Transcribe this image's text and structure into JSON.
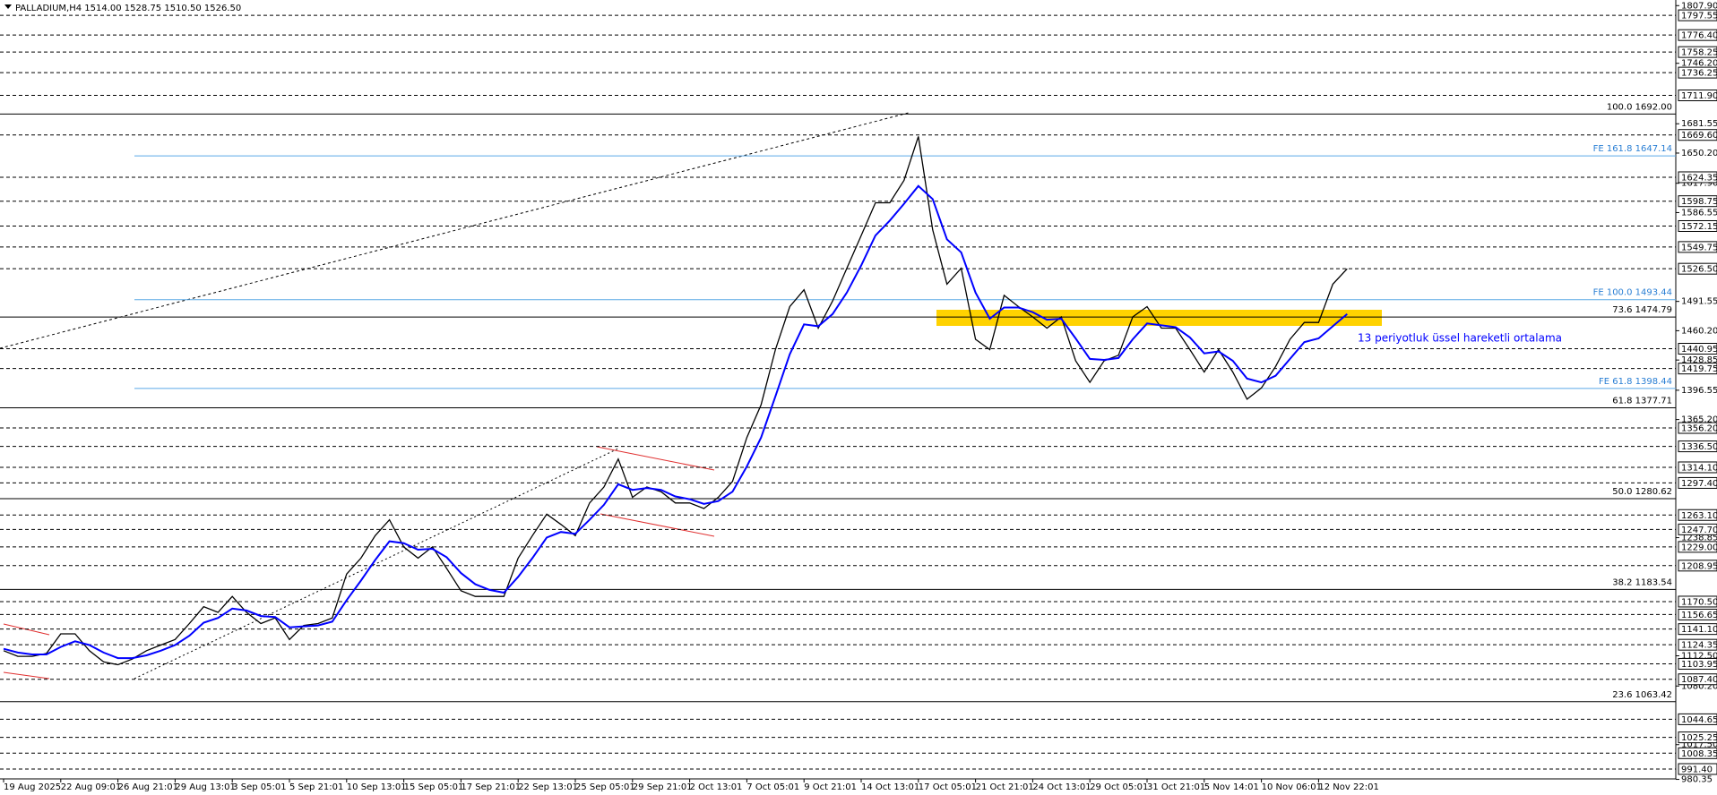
{
  "chart_data": {
    "type": "line",
    "title": "PALLADIUM,H4  1514.00 1528.75 1510.50 1526.50",
    "categories": [
      "19 Aug 2025",
      null,
      null,
      null,
      "22 Aug 09:01",
      null,
      null,
      null,
      "26 Aug 21:01",
      null,
      null,
      null,
      "29 Aug 13:01",
      null,
      null,
      null,
      "3 Sep 05:01",
      null,
      null,
      null,
      "5 Sep 21:01",
      null,
      null,
      null,
      "10 Sep 13:01",
      null,
      null,
      null,
      "15 Sep 05:01",
      null,
      null,
      null,
      "17 Sep 21:01",
      null,
      null,
      null,
      "22 Sep 13:01",
      null,
      null,
      null,
      "25 Sep 05:01",
      null,
      null,
      null,
      "29 Sep 21:01",
      null,
      null,
      null,
      "2 Oct 13:01",
      null,
      null,
      null,
      "7 Oct 05:01",
      null,
      null,
      null,
      "9 Oct 21:01",
      null,
      null,
      null,
      "14 Oct 13:01",
      null,
      null,
      null,
      "17 Oct 05:01",
      null,
      null,
      null,
      "21 Oct 21:01",
      null,
      null,
      null,
      "24 Oct 13:01",
      null,
      null,
      null,
      "29 Oct 05:01",
      null,
      null,
      null,
      "31 Oct 21:01",
      null,
      null,
      null,
      "5 Nov 14:01",
      null,
      null,
      null,
      "10 Nov 06:01",
      null,
      null,
      null,
      "12 Nov 22:01",
      null,
      null
    ],
    "series": [
      {
        "color": "#000000",
        "values": [
          1118,
          1112,
          1112,
          1115,
          1136,
          1136,
          1118,
          1106,
          1103,
          1109,
          1118,
          1124,
          1130,
          1147,
          1165,
          1159,
          1176,
          1159,
          1147,
          1153,
          1130,
          1145,
          1147,
          1153,
          1200,
          1217,
          1241,
          1258,
          1229,
          1217,
          1229,
          1206,
          1182,
          1176,
          1176,
          1176,
          1217,
          1241,
          1264,
          1253,
          1241,
          1276,
          1293,
          1323,
          1282,
          1293,
          1288,
          1276,
          1276,
          1270,
          1282,
          1299,
          1346,
          1381,
          1440,
          1486,
          1504,
          1463,
          1492,
          1527,
          1562,
          1597,
          1597,
          1621,
          1668,
          1568,
          1510,
          1527,
          1451,
          1440,
          1498,
          1486,
          1475,
          1463,
          1475,
          1428,
          1405,
          1428,
          1434,
          1475,
          1486,
          1463,
          1463,
          1440,
          1416,
          1440,
          1416,
          1387,
          1399,
          1422,
          1451,
          1469,
          1469,
          1510,
          1526.5
        ]
      },
      {
        "name": "13 periyotluk üssel hareketli ortalama",
        "color": "#0000ff",
        "values": [
          1120,
          1116,
          1114,
          1114,
          1122,
          1128,
          1124,
          1116,
          1110,
          1110,
          1113,
          1118,
          1124,
          1134,
          1148,
          1153,
          1163,
          1161,
          1155,
          1154,
          1143,
          1144,
          1145,
          1149,
          1172,
          1193,
          1215,
          1235,
          1233,
          1226,
          1227,
          1218,
          1201,
          1189,
          1183,
          1180,
          1197,
          1217,
          1239,
          1245,
          1243,
          1258,
          1274,
          1296,
          1290,
          1292,
          1290,
          1283,
          1280,
          1275,
          1278,
          1288,
          1315,
          1346,
          1390,
          1435,
          1467,
          1465,
          1478,
          1501,
          1530,
          1562,
          1578,
          1596,
          1615,
          1601,
          1558,
          1544,
          1501,
          1473,
          1485,
          1485,
          1480,
          1472,
          1473,
          1452,
          1430,
          1429,
          1431,
          1451,
          1468,
          1466,
          1464,
          1453,
          1436,
          1438,
          1428,
          1409,
          1405,
          1412,
          1430,
          1448,
          1452,
          1465,
          1478
        ]
      }
    ],
    "ylim": [
      978,
      1812
    ],
    "yticks": [
      {
        "value": 1807.9,
        "label": "1807.90"
      },
      {
        "value": 1746.2,
        "label": "1746.20"
      },
      {
        "value": 1681.55,
        "label": "1681.55"
      },
      {
        "value": 1650.2,
        "label": "1650.20"
      },
      {
        "value": 1617.9,
        "label": "1617.90"
      },
      {
        "value": 1586.55,
        "label": "1586.55"
      },
      {
        "value": 1491.55,
        "label": "1491.55"
      },
      {
        "value": 1460.2,
        "label": "1460.20"
      },
      {
        "value": 1428.85,
        "label": "1428.85"
      },
      {
        "value": 1396.55,
        "label": "1396.55"
      },
      {
        "value": 1365.2,
        "label": "1365.20"
      },
      {
        "value": 1238.85,
        "label": "1238.85"
      },
      {
        "value": 1112.5,
        "label": "1112.50"
      },
      {
        "value": 1080.2,
        "label": "1080.20"
      },
      {
        "value": 1017.5,
        "label": "1017.50"
      },
      {
        "value": 980.35,
        "label": "980.35"
      }
    ],
    "levels": [
      {
        "value": 1797.55,
        "label": "1797.55"
      },
      {
        "value": 1776.4,
        "label": "1776.40"
      },
      {
        "value": 1758.25,
        "label": "1758.25"
      },
      {
        "value": 1736.25,
        "label": "1736.25"
      },
      {
        "value": 1711.9,
        "label": "1711.90"
      },
      {
        "value": 1669.6,
        "label": "1669.60"
      },
      {
        "value": 1624.35,
        "label": "1624.35"
      },
      {
        "value": 1598.75,
        "label": "1598.75"
      },
      {
        "value": 1572.15,
        "label": "1572.15"
      },
      {
        "value": 1549.75,
        "label": "1549.75"
      },
      {
        "value": 1526.5,
        "label": "1526.50"
      },
      {
        "value": 1440.95,
        "label": "1440.95"
      },
      {
        "value": 1419.75,
        "label": "1419.75"
      },
      {
        "value": 1356.2,
        "label": "1356.20"
      },
      {
        "value": 1336.5,
        "label": "1336.50"
      },
      {
        "value": 1314.1,
        "label": "1314.10"
      },
      {
        "value": 1297.4,
        "label": "1297.40"
      },
      {
        "value": 1263.1,
        "label": "1263.10"
      },
      {
        "value": 1247.7,
        "label": "1247.70"
      },
      {
        "value": 1229,
        "label": "1229.00"
      },
      {
        "value": 1208.95,
        "label": "1208.95"
      },
      {
        "value": 1170.5,
        "label": "1170.50"
      },
      {
        "value": 1156.65,
        "label": "1156.65"
      },
      {
        "value": 1141.1,
        "label": "1141.10"
      },
      {
        "value": 1124.35,
        "label": "1124.35"
      },
      {
        "value": 1103.95,
        "label": "1103.95"
      },
      {
        "value": 1087.4,
        "label": "1087.40"
      },
      {
        "value": 1044.65,
        "label": "1044.65"
      },
      {
        "value": 1025.25,
        "label": "1025.25"
      },
      {
        "value": 1008.35,
        "label": "1008.35"
      },
      {
        "value": 991.4,
        "label": "991.40"
      }
    ],
    "fibonacci": [
      {
        "value": 1692,
        "label": "100.0 1692.00"
      },
      {
        "value": 1474.79,
        "label": "73.6 1474.79"
      },
      {
        "value": 1377.71,
        "label": "61.8 1377.71"
      },
      {
        "value": 1280.62,
        "label": "50.0 1280.62"
      },
      {
        "value": 1183.54,
        "label": "38.2 1183.54"
      },
      {
        "value": 1063.42,
        "label": "23.6 1063.42"
      }
    ],
    "expansion": [
      {
        "value": 1647.14,
        "label": "FE 161.8 1647.14"
      },
      {
        "value": 1493.44,
        "label": "FE 100.0 1493.44"
      },
      {
        "value": 1398.44,
        "label": "FE 61.8 1398.44"
      }
    ]
  }
}
